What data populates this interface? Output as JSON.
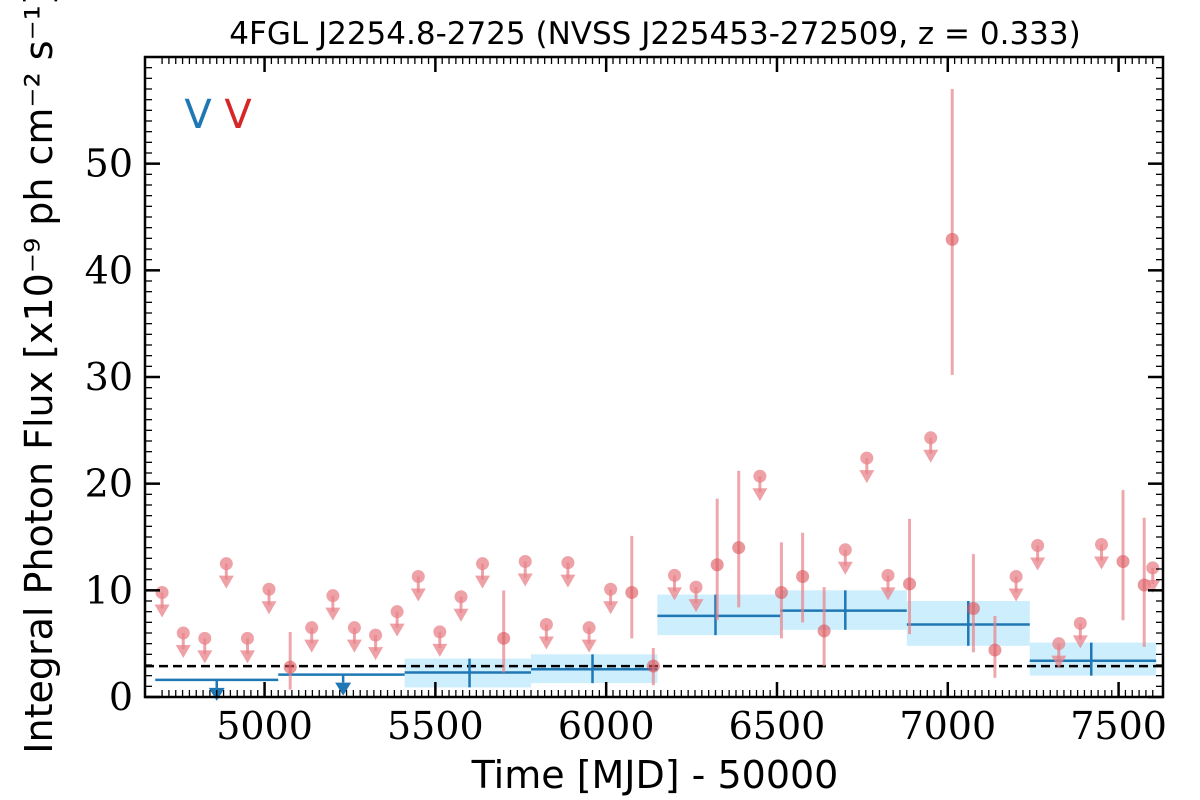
{
  "chart_data": {
    "type": "scatter",
    "title": "4FGL J2254.8-2725 (NVSS J225453-272509, z = 0.333)",
    "xlabel": "Time [MJD] - 50000",
    "ylabel": "Integral Photon Flux [x10⁻⁹ ph cm⁻² s⁻¹]",
    "xlim": [
      4650,
      7630
    ],
    "ylim": [
      0,
      60
    ],
    "x_ticks": [
      "5000",
      "5500",
      "6000",
      "6500",
      "7000",
      "7500"
    ],
    "y_ticks": [
      "0",
      "10",
      "20",
      "30",
      "40",
      "50"
    ],
    "variability_badges": [
      {
        "text": "V",
        "color": "#1f77b4"
      },
      {
        "text": "V",
        "color": "#d62728"
      }
    ],
    "reference_level": 2.9,
    "colors": {
      "coarse": "#1f77b4",
      "coarse_band": "#cdeefc",
      "fine": "#e8838a",
      "reference": "#000000"
    },
    "series": [
      {
        "name": "",
        "kind": "coarse_bins",
        "bins": [
          {
            "x0": 4680,
            "x1": 5040,
            "y": 1.6,
            "upper_limit": true,
            "arrow_x": 4860
          },
          {
            "x0": 5040,
            "x1": 5410,
            "y": 2.1,
            "upper_limit": true,
            "arrow_x": 5230
          },
          {
            "x0": 5410,
            "x1": 5780,
            "y": 2.3,
            "lo": 0.9,
            "hi": 3.6,
            "xc": 5600
          },
          {
            "x0": 5780,
            "x1": 6150,
            "y": 2.6,
            "lo": 1.3,
            "hi": 4.0,
            "xc": 5960
          },
          {
            "x0": 6150,
            "x1": 6510,
            "y": 7.6,
            "lo": 5.8,
            "hi": 9.6,
            "xc": 6320
          },
          {
            "x0": 6510,
            "x1": 6880,
            "y": 8.1,
            "lo": 6.3,
            "hi": 10.0,
            "xc": 6700
          },
          {
            "x0": 6880,
            "x1": 7240,
            "y": 6.8,
            "lo": 4.8,
            "hi": 9.0,
            "xc": 7060
          },
          {
            "x0": 7240,
            "x1": 7610,
            "y": 3.4,
            "lo": 2.0,
            "hi": 5.1,
            "xc": 7420
          }
        ]
      },
      {
        "name": "",
        "kind": "fine_bins",
        "points": [
          {
            "x": 4700,
            "y": 9.8,
            "ul": true
          },
          {
            "x": 4762,
            "y": 6.0,
            "ul": true
          },
          {
            "x": 4825,
            "y": 5.5,
            "ul": true
          },
          {
            "x": 4888,
            "y": 12.5,
            "ul": true
          },
          {
            "x": 4950,
            "y": 5.5,
            "ul": true
          },
          {
            "x": 5013,
            "y": 10.1,
            "ul": true
          },
          {
            "x": 5075,
            "y": 2.8,
            "lo": 0.7,
            "hi": 6.1
          },
          {
            "x": 5138,
            "y": 6.5,
            "ul": true
          },
          {
            "x": 5200,
            "y": 9.5,
            "ul": true
          },
          {
            "x": 5263,
            "y": 6.5,
            "ul": true
          },
          {
            "x": 5325,
            "y": 5.8,
            "ul": true
          },
          {
            "x": 5388,
            "y": 8.0,
            "ul": true
          },
          {
            "x": 5450,
            "y": 11.3,
            "ul": true
          },
          {
            "x": 5513,
            "y": 6.1,
            "ul": true
          },
          {
            "x": 5575,
            "y": 9.4,
            "ul": true
          },
          {
            "x": 5638,
            "y": 12.5,
            "ul": true
          },
          {
            "x": 5700,
            "y": 5.5,
            "lo": 2.3,
            "hi": 10.0
          },
          {
            "x": 5763,
            "y": 12.7,
            "ul": true
          },
          {
            "x": 5825,
            "y": 6.8,
            "ul": true
          },
          {
            "x": 5888,
            "y": 12.6,
            "ul": true
          },
          {
            "x": 5950,
            "y": 6.5,
            "ul": true
          },
          {
            "x": 6013,
            "y": 10.1,
            "ul": true
          },
          {
            "x": 6075,
            "y": 9.8,
            "lo": 5.5,
            "hi": 15.1
          },
          {
            "x": 6138,
            "y": 2.9,
            "lo": 1.1,
            "hi": 4.6
          },
          {
            "x": 6200,
            "y": 11.4,
            "ul": true
          },
          {
            "x": 6263,
            "y": 10.3,
            "ul": true
          },
          {
            "x": 6325,
            "y": 12.4,
            "lo": 7.2,
            "hi": 18.6
          },
          {
            "x": 6388,
            "y": 14.0,
            "lo": 8.4,
            "hi": 21.2
          },
          {
            "x": 6450,
            "y": 20.7,
            "ul": true
          },
          {
            "x": 6513,
            "y": 9.8,
            "lo": 5.5,
            "hi": 14.5
          },
          {
            "x": 6575,
            "y": 11.3,
            "lo": 7.0,
            "hi": 15.4
          },
          {
            "x": 6638,
            "y": 6.2,
            "lo": 2.9,
            "hi": 10.3
          },
          {
            "x": 6700,
            "y": 13.8,
            "ul": true
          },
          {
            "x": 6763,
            "y": 22.4,
            "ul": true
          },
          {
            "x": 6825,
            "y": 11.4,
            "ul": true
          },
          {
            "x": 6888,
            "y": 10.6,
            "lo": 5.9,
            "hi": 16.7
          },
          {
            "x": 6950,
            "y": 24.3,
            "ul": true
          },
          {
            "x": 7013,
            "y": 42.9,
            "lo": 30.2,
            "hi": 57.0
          },
          {
            "x": 7075,
            "y": 8.3,
            "lo": 4.2,
            "hi": 13.4
          },
          {
            "x": 7138,
            "y": 4.4,
            "lo": 1.8,
            "hi": 7.6
          },
          {
            "x": 7200,
            "y": 11.3,
            "ul": true
          },
          {
            "x": 7263,
            "y": 14.2,
            "ul": true
          },
          {
            "x": 7325,
            "y": 5.0,
            "ul": true
          },
          {
            "x": 7388,
            "y": 6.9,
            "ul": true
          },
          {
            "x": 7450,
            "y": 14.3,
            "ul": true
          },
          {
            "x": 7513,
            "y": 12.7,
            "lo": 7.2,
            "hi": 19.4
          },
          {
            "x": 7575,
            "y": 10.5,
            "lo": 4.7,
            "hi": 16.8
          },
          {
            "x": 7600,
            "y": 12.1,
            "ul": true
          }
        ]
      }
    ]
  }
}
